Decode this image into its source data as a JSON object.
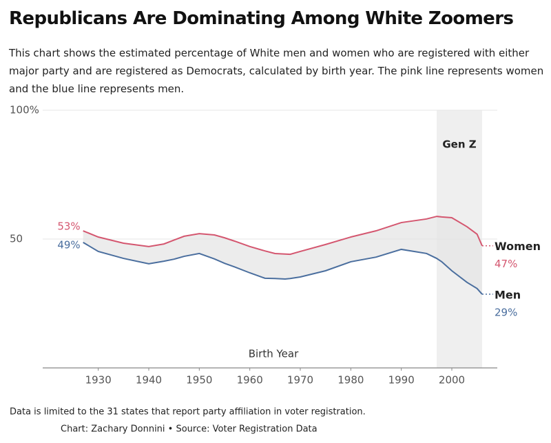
{
  "chart_data": {
    "type": "line",
    "title": "Republicans Are Dominating Among White Zoomers",
    "subtitle": "This chart shows the estimated percentage of White men and women who are registered with either major party and are registered as Democrats, calculated by birth year. The pink line represents women and the blue line represents men.",
    "x_label": "Birth Year",
    "x": [
      1927,
      1930,
      1935,
      1940,
      1943,
      1945,
      1947,
      1950,
      1953,
      1955,
      1957,
      1960,
      1963,
      1965,
      1967,
      1968,
      1970,
      1975,
      1980,
      1985,
      1990,
      1995,
      1997,
      1998,
      2000,
      2003,
      2005,
      2006
    ],
    "series": [
      {
        "name": "Women",
        "color": "#d4566f",
        "values": [
          53.2,
          50.8,
          48.4,
          47.1,
          48.1,
          49.6,
          51.1,
          52.1,
          51.6,
          50.5,
          49.2,
          47.1,
          45.4,
          44.4,
          44.2,
          44.1,
          45.2,
          47.9,
          50.8,
          53.2,
          56.4,
          57.8,
          58.8,
          58.6,
          58.3,
          54.8,
          51.9,
          47.4
        ],
        "value_labels": [
          "53%",
          null,
          null,
          null,
          null,
          null,
          null,
          null,
          null,
          null,
          null,
          null,
          null,
          null,
          null,
          null,
          null,
          null,
          null,
          null,
          null,
          null,
          null,
          null,
          null,
          null,
          null,
          "47%"
        ]
      },
      {
        "name": "Men",
        "color": "#4a6e9e",
        "values": [
          48.7,
          45.2,
          42.5,
          40.4,
          41.4,
          42.2,
          43.3,
          44.4,
          42.3,
          40.6,
          39.2,
          36.9,
          34.8,
          34.7,
          34.5,
          34.7,
          35.3,
          37.7,
          41.2,
          43.0,
          46.0,
          44.4,
          42.5,
          41.2,
          37.7,
          33.2,
          30.8,
          28.6
        ],
        "value_labels": [
          "49%",
          null,
          null,
          null,
          null,
          null,
          null,
          null,
          null,
          null,
          null,
          null,
          null,
          null,
          null,
          null,
          null,
          null,
          null,
          null,
          null,
          null,
          null,
          null,
          null,
          null,
          null,
          "29%"
        ]
      }
    ],
    "highlight": {
      "xlim": [
        1997,
        2006
      ],
      "label": "Gen Z"
    },
    "xlim": [
      1919,
      2009
    ],
    "xticks": [
      1930,
      1940,
      1950,
      1960,
      1970,
      1980,
      1990,
      2000
    ],
    "ylim": [
      0,
      100
    ],
    "yticks": [
      50,
      {
        "value": 100,
        "label": "100%"
      }
    ],
    "grid": true,
    "footnote": "Data is limited to the 31 states that report party affiliation in voter registration.",
    "credit": "Chart: Zachary Donnini • Source: Voter Registration Data"
  }
}
